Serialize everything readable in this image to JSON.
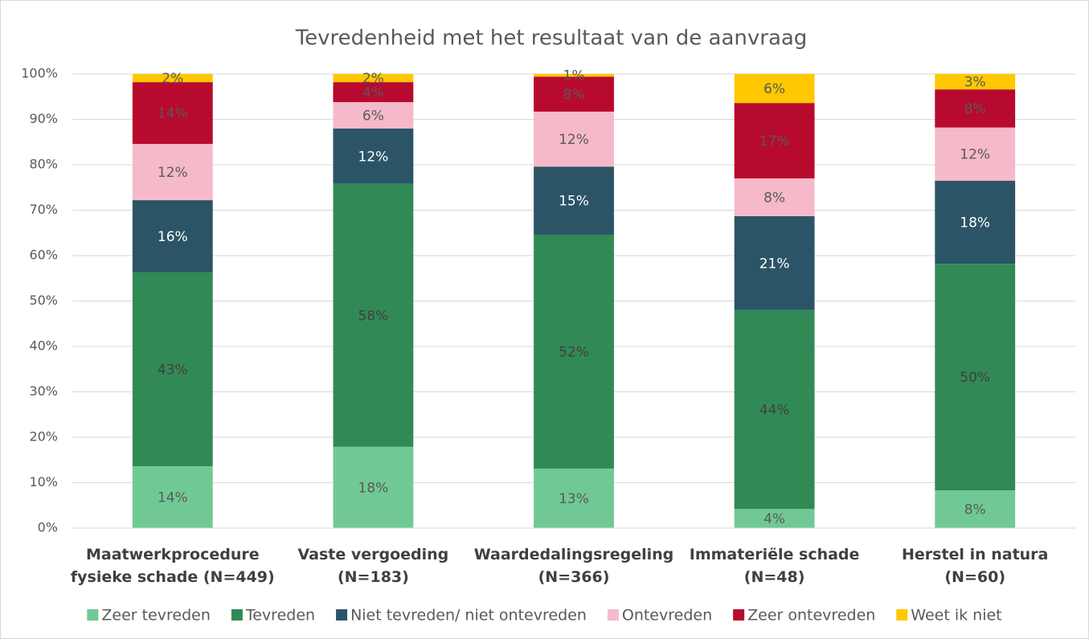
{
  "chart_data": {
    "type": "stacked_bar",
    "title": "Tevredenheid met het resultaat van de aanvraag",
    "categories": [
      "Maatwerkprocedure\nfysieke schade (N=449)",
      "Vaste vergoeding\n(N=183)",
      "Waardedalingsregeling\n(N=366)",
      "Immateriële schade\n(N=48)",
      "Herstel in natura\n(N=60)"
    ],
    "series": [
      {
        "name": "Zeer tevreden",
        "color": "#70c994",
        "label_color": "#595959",
        "values": [
          13.6,
          17.9,
          13.1,
          4.2,
          8.3
        ],
        "value_labels": [
          "14%",
          "18%",
          "13%",
          "4%",
          "8%"
        ]
      },
      {
        "name": "Tevreden",
        "color": "#318a55",
        "label_color": "#404040",
        "values": [
          42.7,
          57.9,
          51.5,
          43.8,
          49.9
        ],
        "value_labels": [
          "43%",
          "58%",
          "52%",
          "44%",
          "50%"
        ]
      },
      {
        "name": "Niet tevreden/ niet ontevreden",
        "color": "#2b5566",
        "label_color": "#ffffff",
        "values": [
          15.9,
          12.2,
          15.0,
          20.7,
          18.3
        ],
        "value_labels": [
          "16%",
          "12%",
          "15%",
          "21%",
          "18%"
        ]
      },
      {
        "name": "Ontevreden",
        "color": "#f6b9c9",
        "label_color": "#595959",
        "values": [
          12.4,
          5.8,
          12.1,
          8.3,
          11.7
        ],
        "value_labels": [
          "12%",
          "6%",
          "12%",
          "8%",
          "12%"
        ]
      },
      {
        "name": "Zeer ontevreden",
        "color": "#b80a2e",
        "label_color": "#595959",
        "values": [
          13.6,
          4.4,
          7.7,
          16.6,
          8.4
        ],
        "value_labels": [
          "14%",
          "4%",
          "8%",
          "17%",
          "8%"
        ]
      },
      {
        "name": "Weet ik niet",
        "color": "#ffc800",
        "label_color": "#595959",
        "values": [
          1.8,
          1.8,
          0.6,
          6.4,
          3.4
        ],
        "value_labels": [
          "2%",
          "2%",
          "1%",
          "6%",
          "3%"
        ]
      }
    ],
    "ylim": [
      0,
      100
    ],
    "yticks": [
      {
        "value": 0,
        "label": "0%"
      },
      {
        "value": 10,
        "label": "10%"
      },
      {
        "value": 20,
        "label": "20%"
      },
      {
        "value": 30,
        "label": "30%"
      },
      {
        "value": 40,
        "label": "40%"
      },
      {
        "value": 50,
        "label": "50%"
      },
      {
        "value": 60,
        "label": "60%"
      },
      {
        "value": 70,
        "label": "70%"
      },
      {
        "value": 80,
        "label": "80%"
      },
      {
        "value": 90,
        "label": "90%"
      },
      {
        "value": 100,
        "label": "100%"
      }
    ],
    "grid": true,
    "legend": "bottom"
  }
}
